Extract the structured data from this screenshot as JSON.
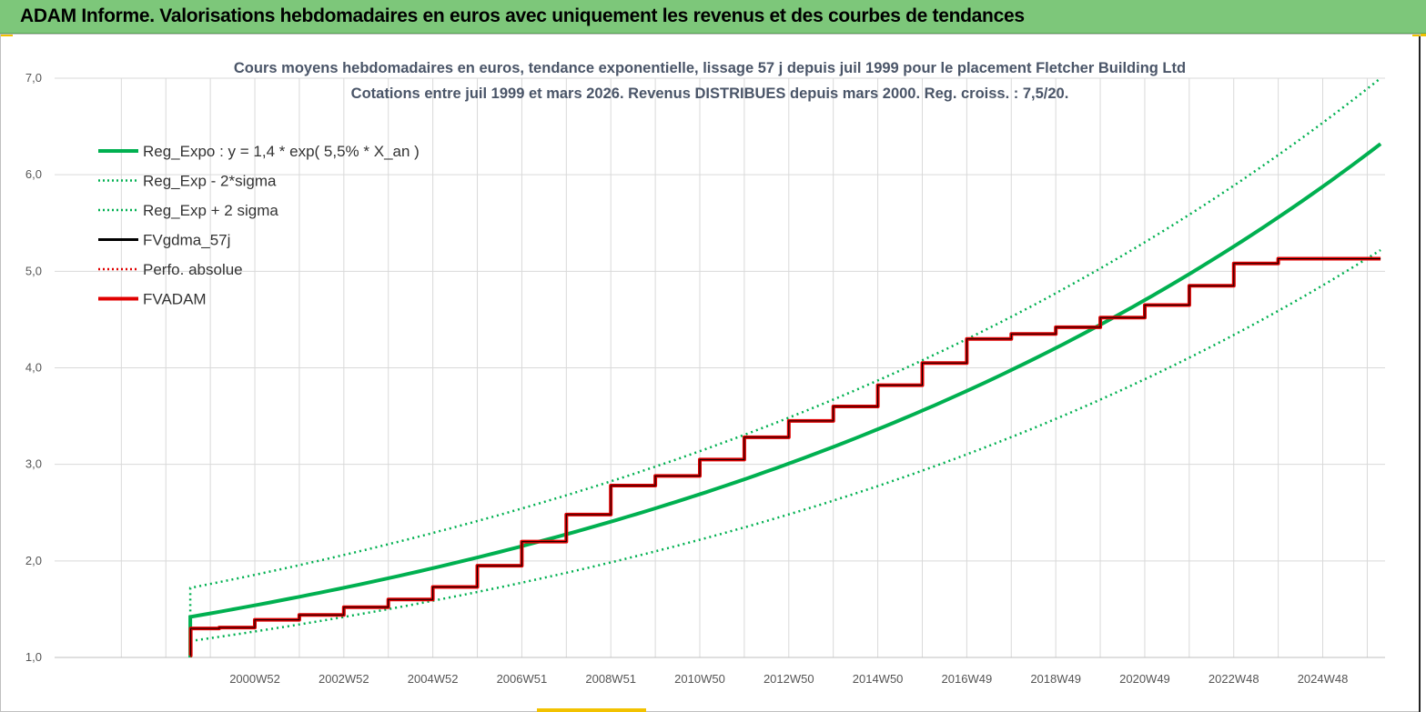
{
  "header": {
    "title": "ADAM Informe. Valorisations hebdomadaires en euros avec uniquement les revenus et des courbes de tendances"
  },
  "chart_data": {
    "type": "line",
    "title": "Cours moyens hebdomadaires en euros, tendance exponentielle, lissage 57 j depuis juil 1999 pour le placement Fletcher Building Ltd",
    "subtitle": "Cotations entre juil 1999 et mars 2026. Revenus DISTRIBUES depuis mars 2000. Reg. croiss. : 7,5/20.",
    "xlabel": "",
    "ylabel": "",
    "ylim": [
      1.0,
      7.0
    ],
    "yticks": [
      "1,0",
      "2,0",
      "3,0",
      "4,0",
      "5,0",
      "6,0",
      "7,0"
    ],
    "xticks": [
      "2000W52",
      "2002W52",
      "2004W52",
      "2006W51",
      "2008W51",
      "2010W50",
      "2012W50",
      "2014W50",
      "2016W49",
      "2018W49",
      "2020W49",
      "2022W48",
      "2024W48"
    ],
    "xlim": [
      1996.5,
      2026.4
    ],
    "grid": true,
    "legend_position": "top-left",
    "series": [
      {
        "name": "Reg_Expo : y = 1,4 * exp( 5,5% *  X_an )",
        "color": "#00b050",
        "style": "solid-thick",
        "x": [
          1999.55,
          2026.3
        ],
        "y": [
          1.42,
          6.32
        ]
      },
      {
        "name": "Reg_Exp - 2*sigma",
        "color": "#00b050",
        "style": "dotted",
        "x": [
          1999.55,
          2026.3
        ],
        "y": [
          1.17,
          5.22
        ]
      },
      {
        "name": "Reg_Exp + 2 sigma",
        "color": "#00b050",
        "style": "dotted",
        "x": [
          1999.55,
          2026.3
        ],
        "y": [
          1.72,
          7.0
        ]
      },
      {
        "name": "FVgdma_57j",
        "color": "#000000",
        "style": "solid-thin",
        "x": [],
        "y": []
      },
      {
        "name": "Perfo. absolue",
        "color": "#e00000",
        "style": "dotted",
        "x": [],
        "y": []
      },
      {
        "name": "FVADAM",
        "color": "#e00000",
        "style": "solid-thick",
        "x": [
          1999.55,
          1999.56,
          2000.2,
          2001.0,
          2002.0,
          2003.0,
          2004.0,
          2005.0,
          2006.0,
          2007.0,
          2008.0,
          2009.0,
          2010.0,
          2011.0,
          2012.0,
          2013.0,
          2014.0,
          2015.0,
          2016.0,
          2017.0,
          2018.0,
          2019.0,
          2020.0,
          2021.0,
          2022.0,
          2023.0,
          2024.0,
          2025.0,
          2026.3
        ],
        "y": [
          1.02,
          1.3,
          1.31,
          1.39,
          1.44,
          1.52,
          1.6,
          1.73,
          1.95,
          2.2,
          2.48,
          2.78,
          2.88,
          3.05,
          3.28,
          3.45,
          3.6,
          3.82,
          4.05,
          4.3,
          4.35,
          4.42,
          4.52,
          4.65,
          4.85,
          5.08,
          5.13,
          5.13,
          5.13
        ]
      }
    ]
  }
}
